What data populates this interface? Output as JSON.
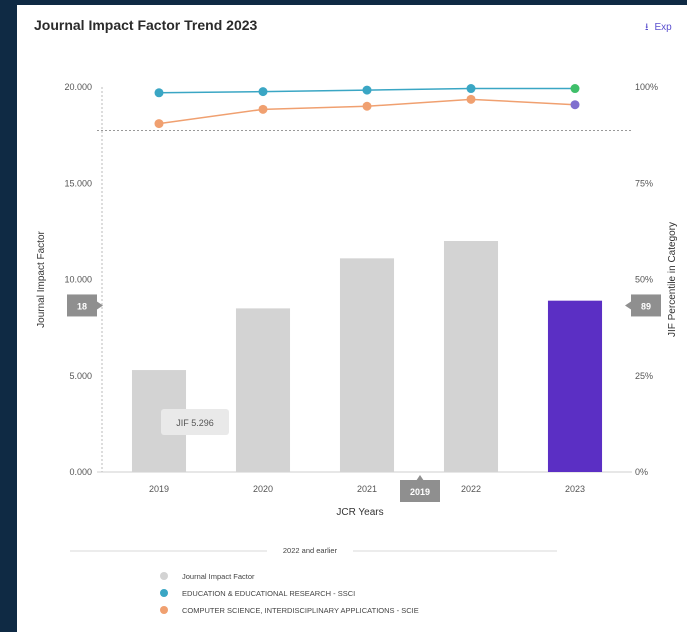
{
  "header": {
    "title": "Journal Impact Factor Trend 2023",
    "export_label": "Exp",
    "export_icon": "download-icon"
  },
  "chart_data": {
    "type": "bar",
    "title": "Journal Impact Factor Trend 2023",
    "xlabel": "JCR Years",
    "ylabel": "Journal Impact Factor",
    "y2label": "JIF Percentile in Category",
    "categories": [
      "2019",
      "2020",
      "2021",
      "2022",
      "2023"
    ],
    "ylim": [
      0,
      20
    ],
    "y_ticks": [
      "0.000",
      "5.000",
      "10.000",
      "15.000",
      "20.000"
    ],
    "y2lim": [
      0,
      100
    ],
    "y2_ticks": [
      "0%",
      "25%",
      "50%",
      "75%",
      "100%"
    ],
    "bars": {
      "name": "Journal Impact Factor",
      "values": [
        5.296,
        8.5,
        11.1,
        12.0,
        8.9
      ],
      "colors": [
        "#d3d3d3",
        "#d3d3d3",
        "#d3d3d3",
        "#d3d3d3",
        "#5b2fc4"
      ]
    },
    "series": [
      {
        "name": "EDUCATION & EDUCATIONAL RESEARCH - SSCI",
        "values": [
          98.5,
          98.8,
          99.2,
          99.6,
          99.6
        ],
        "color": "#3aa6c4",
        "last_point_color": "#3fbf6a"
      },
      {
        "name": "COMPUTER SCIENCE, INTERDISCIPLINARY APPLICATIONS - SCIE",
        "values": [
          90.5,
          94.2,
          95.0,
          96.8,
          95.4
        ],
        "color": "#f0a070",
        "last_point_color": "#7f6fcf"
      }
    ],
    "reference_line_y2": 88.7,
    "legend": {
      "heading": "2022 and earlier",
      "placement": "bottom",
      "bar_swatch_color": "#d3d3d3"
    },
    "tooltip_bar": "JIF 5.296",
    "crosshair": {
      "left_badge": "18",
      "right_badge": "89",
      "x_badge": "2019"
    },
    "grid": false
  }
}
